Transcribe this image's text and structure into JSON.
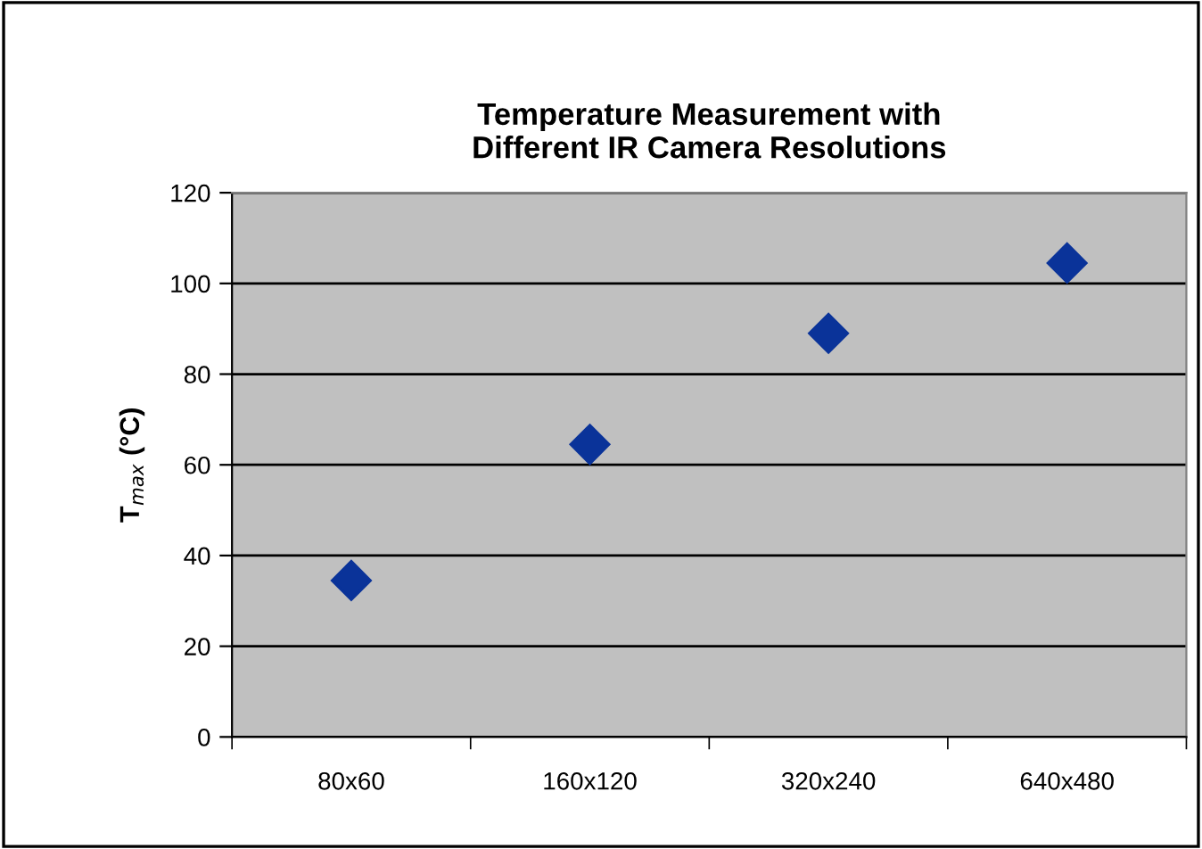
{
  "chart_data": {
    "type": "scatter",
    "title": "Temperature Measurement with\nDifferent IR Camera Resolutions",
    "ylabel": "T$_{max}$ (°C)",
    "categories": [
      "80x60",
      "160x120",
      "320x240",
      "640x480"
    ],
    "series": [
      {
        "color": "#0a3399",
        "values": [
          34.5,
          64.5,
          89,
          104.5
        ]
      }
    ],
    "ylim": [
      0,
      120
    ],
    "yticks": [
      0,
      20,
      40,
      60,
      80,
      100,
      120
    ],
    "grid": "y",
    "marker": "diamond",
    "legend": false
  }
}
